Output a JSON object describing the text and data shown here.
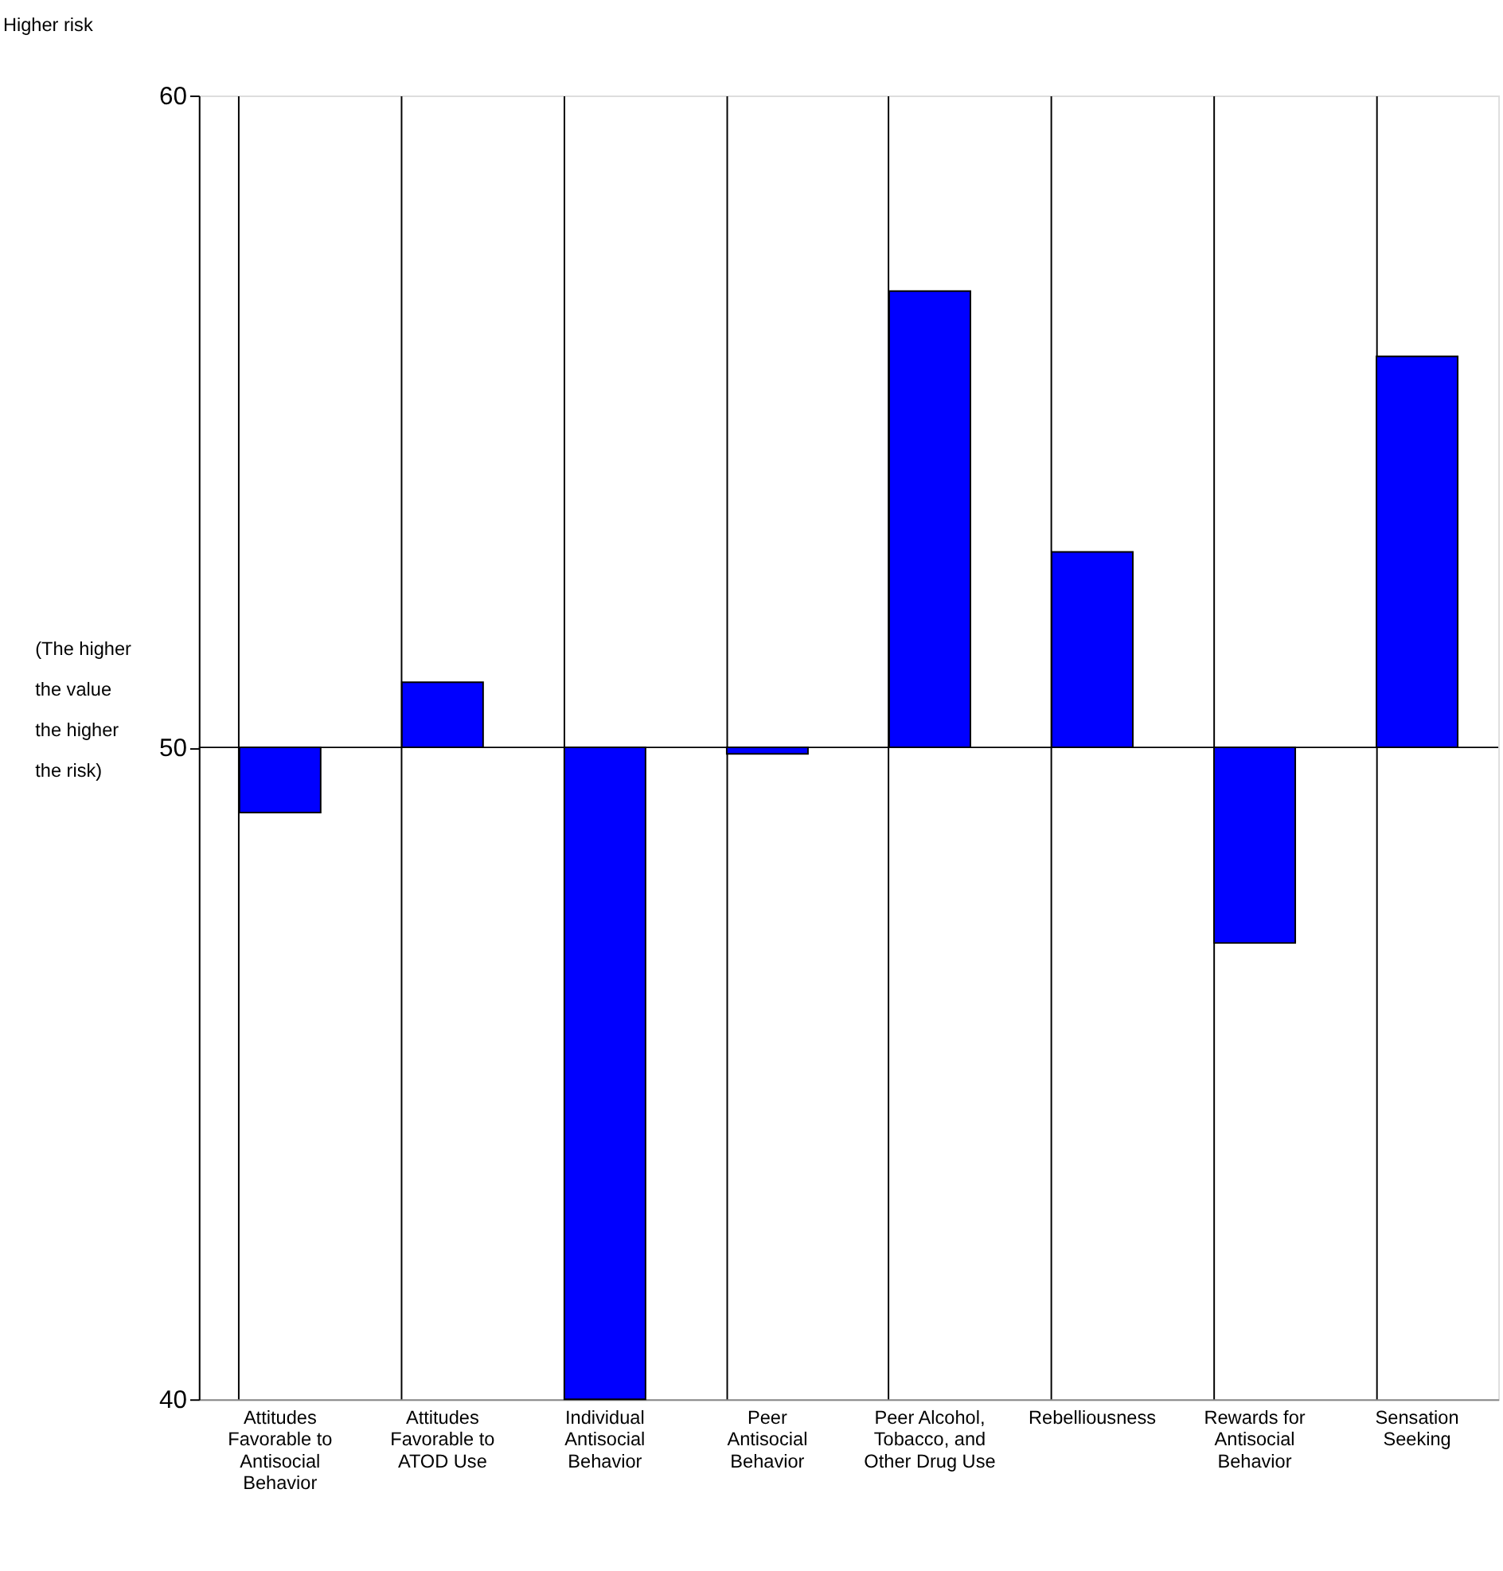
{
  "chart_data": {
    "type": "bar",
    "annotations": [
      "Higher risk"
    ],
    "ylabel": "(The higher the value the higher the risk)",
    "categories": [
      "Attitudes Favorable to Antisocial Behavior",
      "Attitudes Favorable to ATOD Use",
      "Individual Antisocial Behavior",
      "Peer Antisocial Behavior",
      "Peer Alcohol, Tobacco, and Other Drug Use",
      "Rebelliousness",
      "Rewards for Antisocial Behavior",
      "Sensation Seeking"
    ],
    "base": [
      50,
      50,
      50,
      50,
      50,
      50,
      50,
      50
    ],
    "values": [
      -1.0,
      1.0,
      -10.0,
      -0.1,
      7.0,
      3.0,
      -3.0,
      6.0
    ],
    "color": "#0000ff",
    "ylim": [
      40,
      60
    ],
    "yticks": [
      40,
      50,
      60
    ],
    "grid": "x",
    "ref_lines": [
      {
        "axis": "y",
        "value": 50,
        "label": null,
        "color": "#000000"
      }
    ]
  }
}
